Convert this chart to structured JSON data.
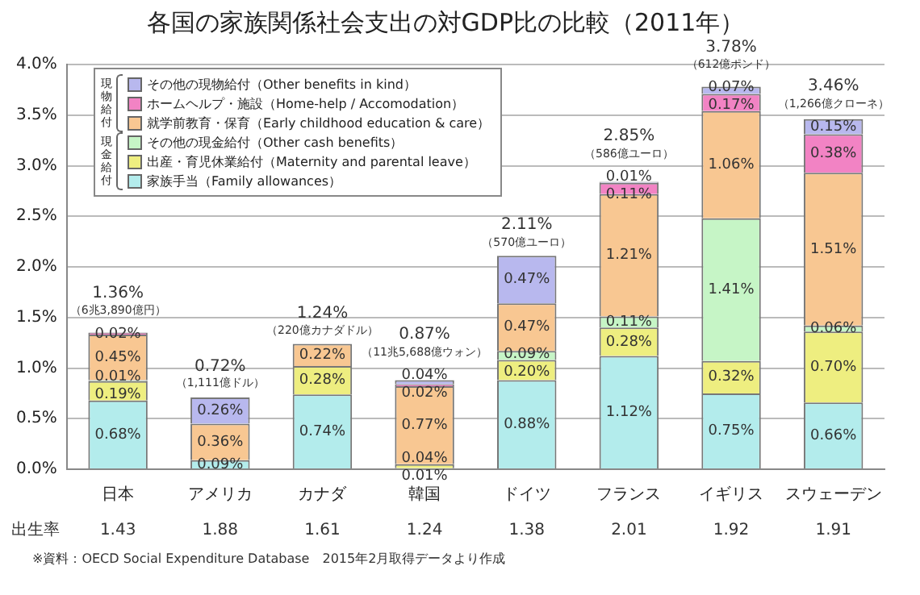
{
  "chart_data": {
    "type": "bar",
    "title": "各国の家族関係社会支出の対GDP比の比較（2011年）",
    "stacked": true,
    "grid": "y",
    "legend": "top left",
    "categories": [
      "日本",
      "アメリカ",
      "カナダ",
      "韓国",
      "ドイツ",
      "フランス",
      "イギリス",
      "スウェーデン"
    ],
    "ylim": [
      0,
      4
    ],
    "yticks": [
      {
        "value": 0,
        "label": "0.0%"
      },
      {
        "value": 0.5,
        "label": "0.5%"
      },
      {
        "value": 1,
        "label": "1.0%"
      },
      {
        "value": 1.5,
        "label": "1.5%"
      },
      {
        "value": 2,
        "label": "2.0%"
      },
      {
        "value": 2.5,
        "label": "2.5%"
      },
      {
        "value": 3,
        "label": "3.0%"
      },
      {
        "value": 3.5,
        "label": "3.5%"
      },
      {
        "value": 4,
        "label": "4.0%"
      }
    ],
    "series": [
      {
        "name": "家族手当（Family allowances）",
        "color": "#b3ecec",
        "values": [
          0.68,
          0.09,
          0.74,
          0.01,
          0.88,
          1.12,
          0.75,
          0.66
        ],
        "value_labels": [
          "0.68%",
          "0.09%",
          "0.74%",
          "0.01%",
          "0.88%",
          "1.12%",
          "0.75%",
          "0.66%"
        ]
      },
      {
        "name": "出産・育児休業給付（Maternity and parental leave）",
        "color": "#eeee80",
        "values": [
          0.19,
          null,
          0.28,
          0.04,
          0.2,
          0.28,
          0.32,
          0.7
        ],
        "value_labels": [
          "0.19%",
          null,
          "0.28%",
          "0.04%",
          "0.20%",
          "0.28%",
          "0.32%",
          "0.70%"
        ]
      },
      {
        "name": "その他の現金給付（Other cash benefits）",
        "color": "#c6f5c6",
        "values": [
          0.01,
          null,
          null,
          null,
          0.09,
          0.11,
          1.41,
          0.06
        ],
        "value_labels": [
          "0.01%",
          null,
          null,
          null,
          "0.09%",
          "0.11%",
          "1.41%",
          "0.06%"
        ]
      },
      {
        "name": "就学前教育・保育（Early childhood education & care）",
        "color": "#f8c792",
        "values": [
          0.45,
          0.36,
          0.22,
          0.77,
          0.47,
          1.21,
          1.06,
          1.51
        ],
        "value_labels": [
          "0.45%",
          "0.36%",
          "0.22%",
          "0.77%",
          "0.47%",
          "1.21%",
          "1.06%",
          "1.51%"
        ]
      },
      {
        "name": "ホームヘルプ・施設（Home-help / Accomodation）",
        "color": "#f283c4",
        "values": [
          0.02,
          null,
          null,
          0.02,
          null,
          0.11,
          0.17,
          0.38
        ],
        "value_labels": [
          "0.02%",
          null,
          null,
          "0.02%",
          null,
          "0.11%",
          "0.17%",
          "0.38%"
        ]
      },
      {
        "name": "その他の現物給付（Other benefits in kind）",
        "color": "#b8b8ee",
        "values": [
          null,
          0.26,
          null,
          0.04,
          0.47,
          0.01,
          0.07,
          0.15
        ],
        "value_labels": [
          null,
          "0.26%",
          null,
          "0.04%",
          "0.47%",
          "0.01%",
          "0.07%",
          "0.15%"
        ]
      }
    ],
    "totals": [
      "1.36%",
      "0.72%",
      "1.24%",
      "0.87%",
      "2.11%",
      "2.85%",
      "3.78%",
      "3.46%"
    ],
    "annotations": [
      {
        "text": "（6兆3,890億円）",
        "x": "日本",
        "y": 1.36
      },
      {
        "text": "（1,111億ドル）",
        "x": "アメリカ",
        "y": 0.72
      },
      {
        "text": "（220億カナダドル）",
        "x": "カナダ",
        "y": 1.24
      },
      {
        "text": "（11兆5,688億ウォン）",
        "x": "韓国",
        "y": 0.87
      },
      {
        "text": "（570億ユーロ）",
        "x": "ドイツ",
        "y": 2.11
      },
      {
        "text": "（586億ユーロ）",
        "x": "フランス",
        "y": 2.85
      },
      {
        "text": "（612億ポンド）",
        "x": "イギリス",
        "y": 3.78
      },
      {
        "text": "（1,266億クローネ）",
        "x": "スウェーデン",
        "y": 3.46
      },
      "現物給付",
      "現金給付",
      "出生率",
      "1.43",
      "1.88",
      "1.61",
      "1.24",
      "1.38",
      "2.01",
      "1.92",
      "1.91",
      "※資料：OECD Social Expenditure Database　2015年2月取得データより作成"
    ]
  }
}
